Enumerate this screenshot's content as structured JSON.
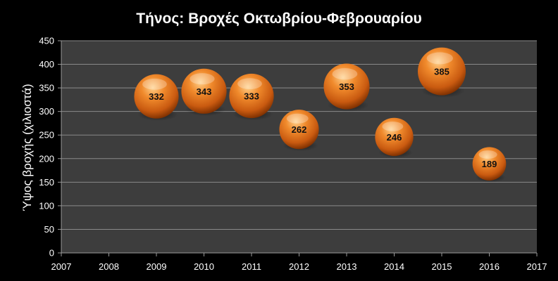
{
  "chart_data": {
    "type": "bubble",
    "title": "Τήνος: Βροχές Οκτωβρίου-Φεβρουαρίου",
    "xlabel": "",
    "ylabel": "Ύψος βροχής (χιλιοστά)",
    "xlim": [
      2007,
      2017
    ],
    "ylim": [
      0,
      450
    ],
    "x_ticks": [
      2007,
      2008,
      2009,
      2010,
      2011,
      2012,
      2013,
      2014,
      2015,
      2016,
      2017
    ],
    "y_ticks": [
      0,
      50,
      100,
      150,
      200,
      250,
      300,
      350,
      400,
      450
    ],
    "grid": true,
    "legend": "none",
    "series": [
      {
        "x": [
          2009,
          2010,
          2011,
          2012,
          2013,
          2014,
          2015,
          2016
        ],
        "values": [
          332,
          343,
          333,
          262,
          353,
          246,
          385,
          189
        ],
        "labels": [
          "332",
          "343",
          "333",
          "262",
          "353",
          "246",
          "385",
          "189"
        ]
      }
    ],
    "colors": {
      "background": "#000000",
      "plot_area": "#3d3d3d",
      "gridline": "#8a8a8a",
      "bubble": "#e8741e",
      "bubble_highlight": "#ffd08a",
      "bubble_shadow": "#7a2e00",
      "text": "#ffffff",
      "data_label": "#111111"
    }
  }
}
